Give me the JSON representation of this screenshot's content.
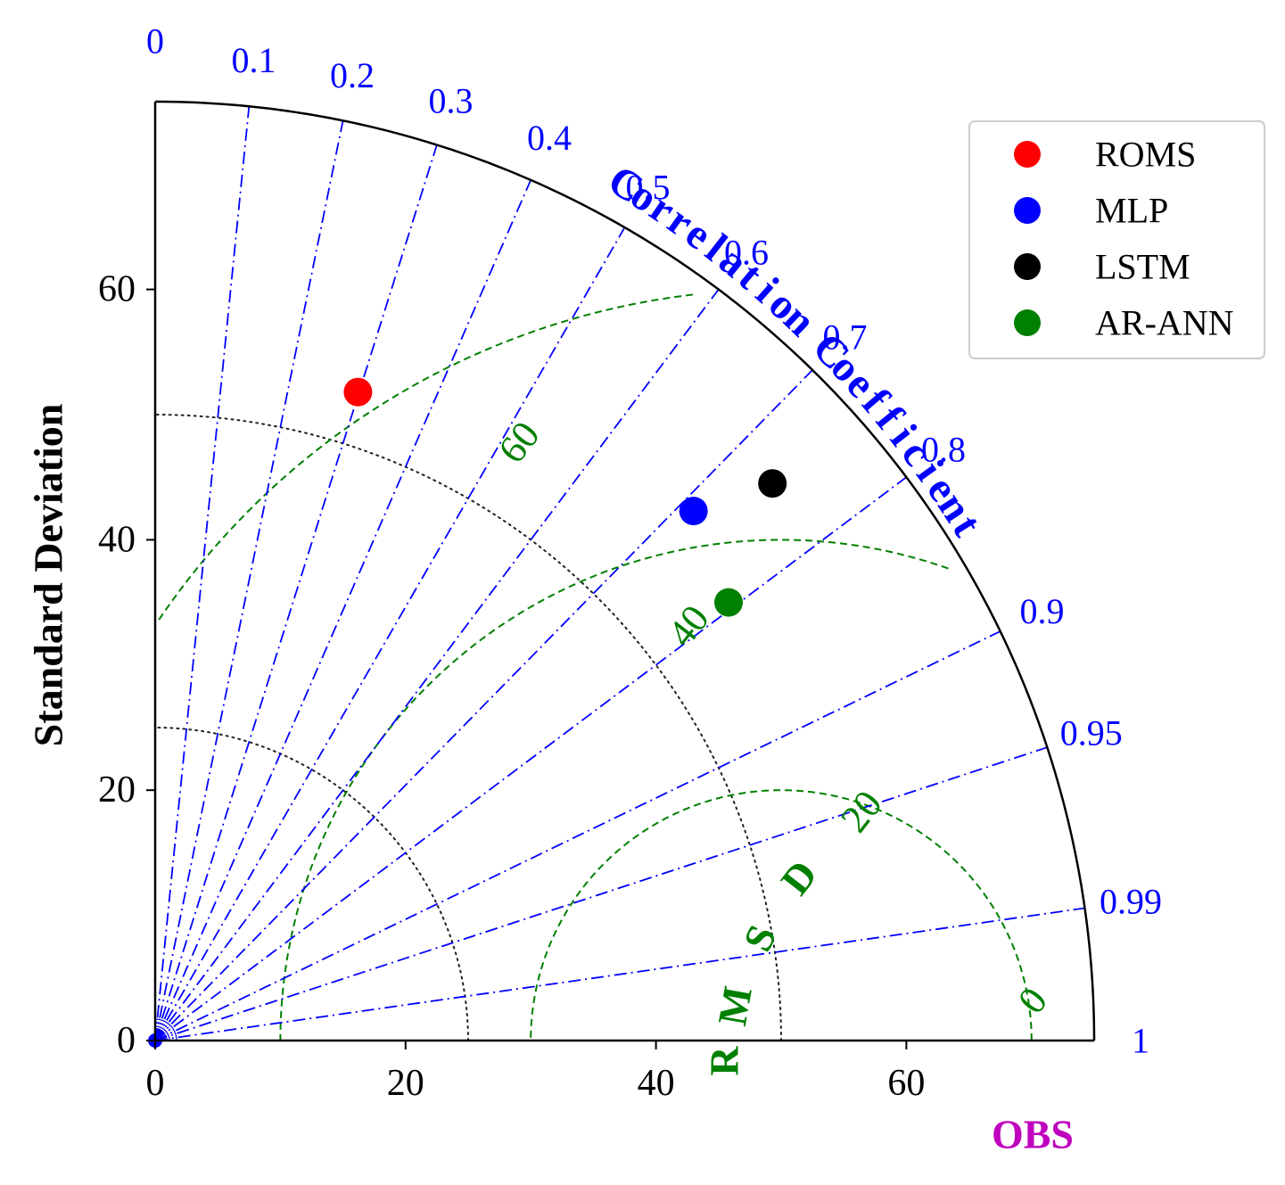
{
  "chart_data": {
    "type": "taylor-diagram",
    "axes": {
      "std_ticks": [
        0,
        20,
        40,
        60
      ],
      "std_max": 75,
      "ylabel": "Standard Deviation",
      "obs_label": "OBS",
      "obs_std": 50
    },
    "correlation": {
      "title": "Correlation Coefficient",
      "ticks": [
        "0",
        "0.1",
        "0.2",
        "0.3",
        "0.4",
        "0.5",
        "0.6",
        "0.7",
        "0.8",
        "0.9",
        "0.95",
        "0.99",
        "1"
      ],
      "tick_values": [
        0,
        0.1,
        0.2,
        0.3,
        0.4,
        0.5,
        0.6,
        0.7,
        0.8,
        0.9,
        0.95,
        0.99,
        1
      ]
    },
    "std_reference_arcs": [
      25,
      50
    ],
    "rmsd": {
      "label": "RMSD",
      "contours": [
        0,
        20,
        40,
        60
      ],
      "labels": [
        "0",
        "20",
        "40",
        "60"
      ]
    },
    "series": [
      {
        "name": "ROMS",
        "color": "#ff0000",
        "x": 16.2,
        "y": 51.8
      },
      {
        "name": "MLP",
        "color": "#0000ff",
        "x": 43.0,
        "y": 42.3
      },
      {
        "name": "LSTM",
        "color": "#000000",
        "x": 49.3,
        "y": 44.5
      },
      {
        "name": "AR-ANN",
        "color": "#008000",
        "x": 45.8,
        "y": 35.0
      }
    ],
    "colors": {
      "correlation": "#0000ff",
      "rmsd": "#008000",
      "obs": "#bf00bf",
      "axes": "#000000"
    }
  }
}
